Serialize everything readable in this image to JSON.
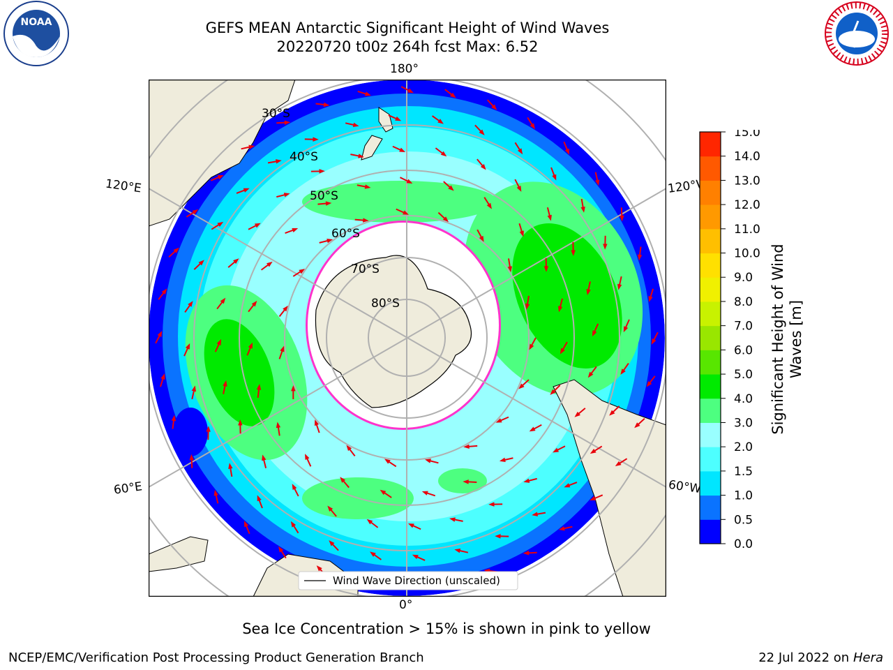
{
  "title": {
    "line1": "GEFS MEAN Antarctic Significant Height of Wind Waves",
    "line2": "20220720 t00z 264h fcst   Max: 6.52"
  },
  "map": {
    "projection": "south polar stereographic",
    "longitude_labels": {
      "top": "180°",
      "bottom": "0°",
      "upper_left": "120°E",
      "upper_right": "120°W",
      "lower_left": "60°E",
      "lower_right": "60°W"
    },
    "latitude_labels": [
      "30°S",
      "40°S",
      "50°S",
      "60°S",
      "70°S",
      "80°S"
    ],
    "legend": "Wind Wave Direction (unscaled)",
    "arrow_color": "#e8000b"
  },
  "colorbar": {
    "label_line1": "Significant Height of Wind",
    "label_line2": "Waves [m]",
    "ticks": [
      "0.0",
      "0.5",
      "1.0",
      "1.5",
      "2.0",
      "3.0",
      "4.0",
      "5.0",
      "6.0",
      "7.0",
      "8.0",
      "9.0",
      "10.0",
      "11.0",
      "12.0",
      "13.0",
      "14.0",
      "15.0"
    ],
    "colors": [
      "#0000ff",
      "#0a73ff",
      "#00e6ff",
      "#4dffff",
      "#99ffff",
      "#4dff80",
      "#00ea00",
      "#58e600",
      "#99e600",
      "#c8f200",
      "#f0f000",
      "#ffe000",
      "#ffbf00",
      "#ff9900",
      "#ff8000",
      "#ff5900",
      "#ff2600"
    ]
  },
  "notes": {
    "sea_ice": "Sea Ice Concentration > 15% is shown in pink to yellow",
    "footer_left": "NCEP/EMC/Verification Post Processing Product Generation Branch",
    "footer_date": "22 Jul 2022 on ",
    "footer_host": "Hera"
  },
  "logos": {
    "noaa_text": "NOAA",
    "nws_text": "NATIONAL WEATHER SERVICE"
  }
}
